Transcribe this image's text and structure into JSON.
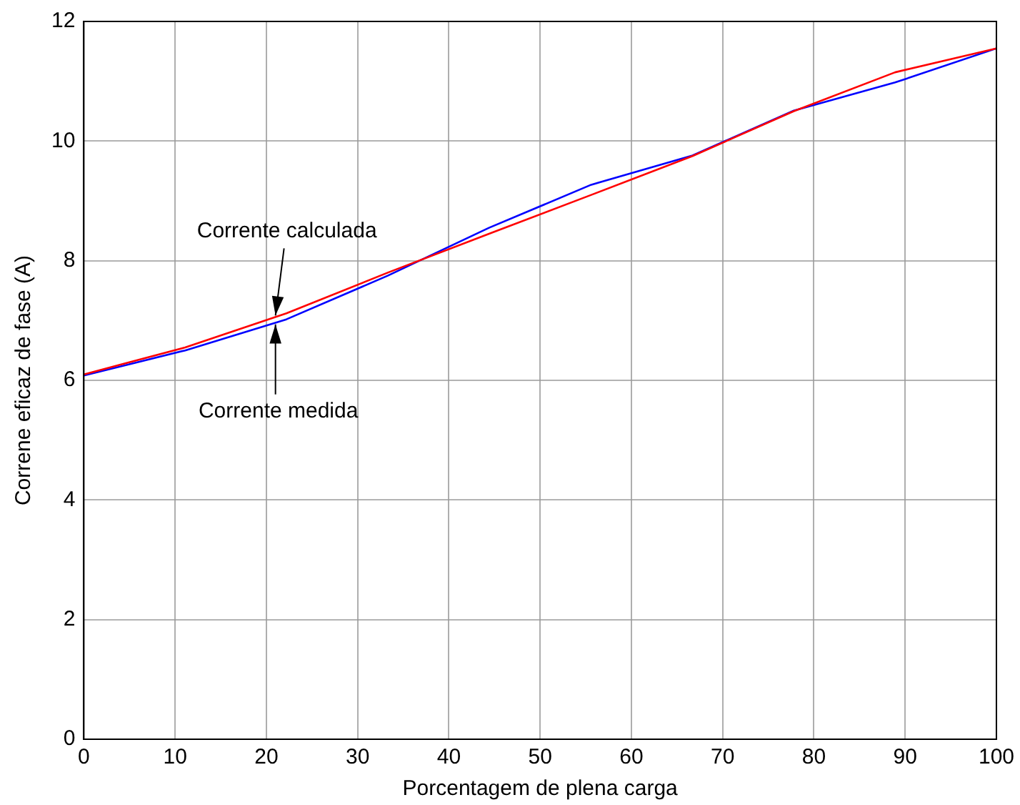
{
  "chart_data": {
    "type": "line",
    "xlabel": "Porcentagem de plena carga",
    "ylabel": "Correne eficaz de fase (A)",
    "xlim": [
      0,
      100
    ],
    "xticks": [
      0,
      10,
      20,
      30,
      40,
      50,
      60,
      70,
      80,
      90,
      100
    ],
    "ylim": [
      0,
      12
    ],
    "yticks": [
      0,
      2,
      4,
      6,
      8,
      10,
      12
    ],
    "grid": true,
    "legend": false,
    "marker": "none",
    "line_style": "solid",
    "series": [
      {
        "color": "#ff0000",
        "x": [
          0,
          11.1,
          22.2,
          33.3,
          44.4,
          55.6,
          66.7,
          77.8,
          88.9,
          100
        ],
        "values": [
          6.1,
          6.55,
          7.12,
          7.8,
          8.45,
          9.1,
          9.75,
          10.5,
          11.15,
          11.55
        ]
      },
      {
        "color": "#0000ff",
        "x": [
          0,
          11.1,
          22.2,
          33.3,
          44.4,
          55.6,
          66.7,
          77.8,
          88.9,
          100
        ],
        "values": [
          6.08,
          6.5,
          7.02,
          7.75,
          8.55,
          9.27,
          9.76,
          10.51,
          10.98,
          11.55
        ]
      }
    ],
    "annotations": [
      {
        "text": "Corrente calculada",
        "x": 21,
        "y": 7.06
      },
      {
        "text": "Corrente medida",
        "x": 21,
        "y": 6.96
      }
    ]
  }
}
